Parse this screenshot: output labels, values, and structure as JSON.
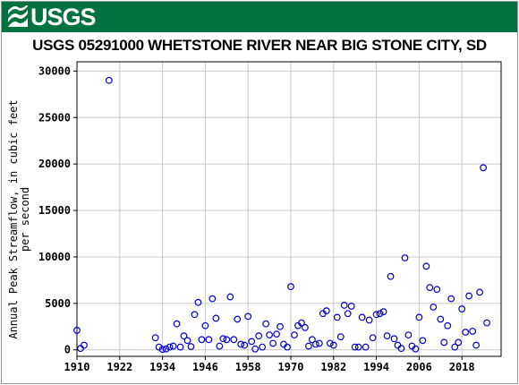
{
  "header": {
    "logo_text": "USGS",
    "logo_icon": "usgs-wave-icon",
    "brand_color": "#00713f"
  },
  "chart_data": {
    "type": "scatter",
    "title": "USGS 05291000 WHETSTONE RIVER NEAR BIG STONE CITY, SD",
    "ylabel_line1": "Annual Peak Streamflow, in cubic feet",
    "ylabel_line2": "per second",
    "xlabel": "",
    "xlim": [
      1910,
      2029
    ],
    "ylim": [
      -700,
      31000
    ],
    "xticks": [
      1910,
      1922,
      1934,
      1946,
      1958,
      1970,
      1982,
      1994,
      2006,
      2018
    ],
    "yticks": [
      0,
      5000,
      10000,
      15000,
      20000,
      25000,
      30000
    ],
    "grid": true,
    "marker": "open-circle",
    "marker_color": "#0000cc",
    "series": [
      {
        "points": [
          [
            1910,
            2100
          ],
          [
            1911,
            150
          ],
          [
            1912,
            500
          ],
          [
            1919,
            29000
          ],
          [
            1932,
            1300
          ],
          [
            1933,
            300
          ],
          [
            1934,
            50
          ],
          [
            1935,
            100
          ],
          [
            1936,
            300
          ],
          [
            1937,
            400
          ],
          [
            1938,
            2800
          ],
          [
            1939,
            300
          ],
          [
            1940,
            1500
          ],
          [
            1941,
            1000
          ],
          [
            1942,
            350
          ],
          [
            1943,
            3800
          ],
          [
            1944,
            5100
          ],
          [
            1945,
            1100
          ],
          [
            1946,
            2600
          ],
          [
            1947,
            1100
          ],
          [
            1948,
            5500
          ],
          [
            1949,
            3400
          ],
          [
            1950,
            400
          ],
          [
            1951,
            1200
          ],
          [
            1952,
            1100
          ],
          [
            1953,
            5700
          ],
          [
            1954,
            1100
          ],
          [
            1955,
            3300
          ],
          [
            1956,
            600
          ],
          [
            1957,
            500
          ],
          [
            1958,
            3600
          ],
          [
            1959,
            900
          ],
          [
            1960,
            100
          ],
          [
            1961,
            1500
          ],
          [
            1962,
            300
          ],
          [
            1963,
            2800
          ],
          [
            1964,
            1600
          ],
          [
            1965,
            700
          ],
          [
            1966,
            1700
          ],
          [
            1967,
            2500
          ],
          [
            1968,
            600
          ],
          [
            1969,
            300
          ],
          [
            1970,
            6800
          ],
          [
            1971,
            1600
          ],
          [
            1972,
            2600
          ],
          [
            1973,
            2900
          ],
          [
            1974,
            2400
          ],
          [
            1975,
            400
          ],
          [
            1976,
            1100
          ],
          [
            1977,
            600
          ],
          [
            1978,
            700
          ],
          [
            1979,
            3900
          ],
          [
            1980,
            4200
          ],
          [
            1981,
            700
          ],
          [
            1982,
            500
          ],
          [
            1983,
            3500
          ],
          [
            1984,
            1400
          ],
          [
            1985,
            4800
          ],
          [
            1986,
            3900
          ],
          [
            1987,
            4700
          ],
          [
            1988,
            300
          ],
          [
            1989,
            300
          ],
          [
            1990,
            3500
          ],
          [
            1991,
            300
          ],
          [
            1992,
            3200
          ],
          [
            1993,
            1300
          ],
          [
            1994,
            3800
          ],
          [
            1995,
            3900
          ],
          [
            1996,
            4100
          ],
          [
            1997,
            1500
          ],
          [
            1998,
            7900
          ],
          [
            1999,
            1200
          ],
          [
            2000,
            500
          ],
          [
            2001,
            150
          ],
          [
            2002,
            9900
          ],
          [
            2003,
            1600
          ],
          [
            2004,
            400
          ],
          [
            2005,
            100
          ],
          [
            2006,
            3500
          ],
          [
            2007,
            1000
          ],
          [
            2008,
            9000
          ],
          [
            2009,
            6700
          ],
          [
            2010,
            4600
          ],
          [
            2011,
            6500
          ],
          [
            2012,
            3300
          ],
          [
            2013,
            800
          ],
          [
            2014,
            2600
          ],
          [
            2015,
            5500
          ],
          [
            2016,
            300
          ],
          [
            2017,
            800
          ],
          [
            2018,
            4400
          ],
          [
            2019,
            1900
          ],
          [
            2020,
            5800
          ],
          [
            2021,
            2000
          ],
          [
            2022,
            500
          ],
          [
            2023,
            6200
          ],
          [
            2024,
            19600
          ],
          [
            2025,
            2900
          ]
        ]
      }
    ]
  }
}
